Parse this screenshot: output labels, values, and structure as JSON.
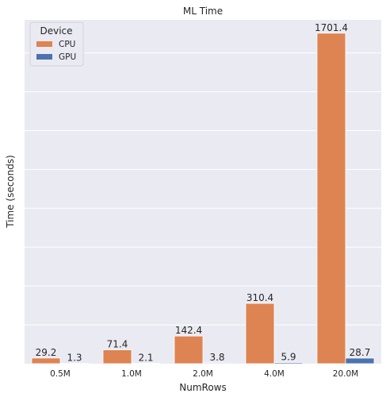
{
  "chart_data": {
    "type": "bar",
    "title": "ML Time",
    "xlabel": "NumRows",
    "ylabel": "Time (seconds)",
    "categories": [
      "0.5M",
      "1.0M",
      "2.0M",
      "4.0M",
      "20.0M"
    ],
    "series": [
      {
        "name": "CPU",
        "color": "#dd8452",
        "values": [
          29.2,
          71.4,
          142.4,
          310.4,
          1701.4
        ],
        "labels": [
          "29.2",
          "71.4",
          "142.4",
          "310.4",
          "1701.4"
        ]
      },
      {
        "name": "GPU",
        "color": "#4c72b0",
        "values": [
          1.3,
          2.1,
          3.8,
          5.9,
          28.7
        ],
        "labels": [
          "1.3",
          "2.1",
          "3.8",
          "5.9",
          "28.7"
        ]
      }
    ],
    "ylim": [
      0,
      1770
    ],
    "grid": true,
    "legend": {
      "title": "Device",
      "placement": "top-left"
    }
  }
}
